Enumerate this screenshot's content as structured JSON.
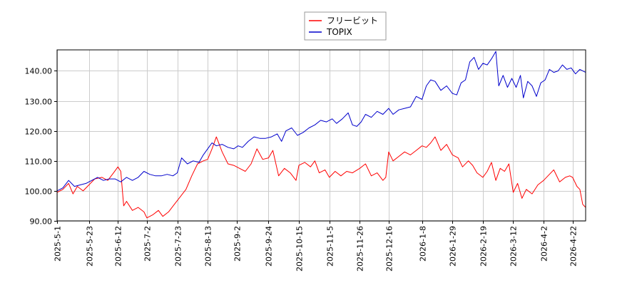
{
  "chart_data": {
    "type": "line",
    "title": "",
    "xlabel": "",
    "ylabel": "",
    "ylim": [
      90,
      147
    ],
    "yticks": [
      90,
      100,
      110,
      120,
      130,
      140
    ],
    "ytick_labels": [
      "90.00",
      "100.00",
      "110.00",
      "120.00",
      "130.00",
      "140.00"
    ],
    "xrange": [
      "2025-05-01",
      "2026-05-01"
    ],
    "xticks": [
      "2025-5-1",
      "2025-5-23",
      "2025-6-12",
      "2025-7-2",
      "2025-7-23",
      "2025-8-13",
      "2025-9-2",
      "2025-9-24",
      "2025-10-15",
      "2025-11-5",
      "2025-11-26",
      "2025-12-16",
      "2026-1-8",
      "2026-1-29",
      "2026-2-19",
      "2026-3-12",
      "2026-4-2",
      "2026-4-22"
    ],
    "grid": true,
    "legend_position": "top-center",
    "series": [
      {
        "name": "フリービット",
        "color": "#ff0000",
        "points": [
          [
            "2025-05-01",
            99.5
          ],
          [
            "2025-05-05",
            100.5
          ],
          [
            "2025-05-09",
            102.5
          ],
          [
            "2025-05-12",
            99.0
          ],
          [
            "2025-05-15",
            101.5
          ],
          [
            "2025-05-19",
            100.0
          ],
          [
            "2025-05-23",
            102.0
          ],
          [
            "2025-05-27",
            104.0
          ],
          [
            "2025-06-01",
            104.5
          ],
          [
            "2025-06-05",
            103.5
          ],
          [
            "2025-06-09",
            106.0
          ],
          [
            "2025-06-12",
            108.0
          ],
          [
            "2025-06-14",
            106.5
          ],
          [
            "2025-06-16",
            95.0
          ],
          [
            "2025-06-18",
            96.5
          ],
          [
            "2025-06-22",
            93.5
          ],
          [
            "2025-06-26",
            94.5
          ],
          [
            "2025-06-30",
            93.0
          ],
          [
            "2025-07-02",
            91.0
          ],
          [
            "2025-07-06",
            92.0
          ],
          [
            "2025-07-10",
            93.5
          ],
          [
            "2025-07-13",
            91.5
          ],
          [
            "2025-07-17",
            93.0
          ],
          [
            "2025-07-21",
            95.5
          ],
          [
            "2025-07-25",
            98.0
          ],
          [
            "2025-07-29",
            100.5
          ],
          [
            "2025-08-02",
            105.0
          ],
          [
            "2025-08-06",
            109.0
          ],
          [
            "2025-08-10",
            110.0
          ],
          [
            "2025-08-13",
            110.5
          ],
          [
            "2025-08-16",
            114.0
          ],
          [
            "2025-08-19",
            118.0
          ],
          [
            "2025-08-23",
            113.0
          ],
          [
            "2025-08-27",
            109.0
          ],
          [
            "2025-08-31",
            108.5
          ],
          [
            "2025-09-04",
            107.5
          ],
          [
            "2025-09-08",
            106.5
          ],
          [
            "2025-09-12",
            109.0
          ],
          [
            "2025-09-16",
            114.0
          ],
          [
            "2025-09-20",
            110.5
          ],
          [
            "2025-09-24",
            111.0
          ],
          [
            "2025-09-27",
            113.5
          ],
          [
            "2025-10-01",
            105.0
          ],
          [
            "2025-10-05",
            107.5
          ],
          [
            "2025-10-09",
            106.0
          ],
          [
            "2025-10-13",
            103.5
          ],
          [
            "2025-10-15",
            108.5
          ],
          [
            "2025-10-19",
            109.5
          ],
          [
            "2025-10-23",
            108.0
          ],
          [
            "2025-10-26",
            110.0
          ],
          [
            "2025-10-29",
            106.0
          ],
          [
            "2025-11-02",
            107.0
          ],
          [
            "2025-11-05",
            104.5
          ],
          [
            "2025-11-09",
            106.5
          ],
          [
            "2025-11-13",
            105.0
          ],
          [
            "2025-11-17",
            106.5
          ],
          [
            "2025-11-21",
            106.0
          ],
          [
            "2025-11-26",
            107.5
          ],
          [
            "2025-11-30",
            109.0
          ],
          [
            "2025-12-04",
            105.0
          ],
          [
            "2025-12-08",
            106.0
          ],
          [
            "2025-12-12",
            103.5
          ],
          [
            "2025-12-14",
            104.5
          ],
          [
            "2025-12-16",
            113.0
          ],
          [
            "2025-12-19",
            110.0
          ],
          [
            "2025-12-23",
            111.5
          ],
          [
            "2025-12-27",
            113.0
          ],
          [
            "2025-12-31",
            112.0
          ],
          [
            "2026-01-04",
            113.5
          ],
          [
            "2026-01-08",
            115.0
          ],
          [
            "2026-01-11",
            114.5
          ],
          [
            "2026-01-14",
            116.0
          ],
          [
            "2026-01-17",
            118.0
          ],
          [
            "2026-01-21",
            113.5
          ],
          [
            "2026-01-25",
            115.5
          ],
          [
            "2026-01-29",
            112.0
          ],
          [
            "2026-02-02",
            111.0
          ],
          [
            "2026-02-05",
            108.0
          ],
          [
            "2026-02-09",
            110.0
          ],
          [
            "2026-02-12",
            108.5
          ],
          [
            "2026-02-15",
            106.0
          ],
          [
            "2026-02-19",
            104.5
          ],
          [
            "2026-02-22",
            106.5
          ],
          [
            "2026-02-25",
            109.5
          ],
          [
            "2026-02-28",
            103.5
          ],
          [
            "2026-03-03",
            107.5
          ],
          [
            "2026-03-06",
            106.5
          ],
          [
            "2026-03-09",
            109.0
          ],
          [
            "2026-03-12",
            99.5
          ],
          [
            "2026-03-15",
            102.5
          ],
          [
            "2026-03-18",
            97.5
          ],
          [
            "2026-03-21",
            100.5
          ],
          [
            "2026-03-25",
            99.0
          ],
          [
            "2026-03-29",
            102.0
          ],
          [
            "2026-04-02",
            103.5
          ],
          [
            "2026-04-06",
            105.5
          ],
          [
            "2026-04-09",
            107.0
          ],
          [
            "2026-04-13",
            103.0
          ],
          [
            "2026-04-17",
            104.5
          ],
          [
            "2026-04-20",
            105.0
          ],
          [
            "2026-04-22",
            104.5
          ],
          [
            "2026-04-25",
            101.5
          ],
          [
            "2026-04-27",
            100.5
          ],
          [
            "2026-04-29",
            95.5
          ],
          [
            "2026-05-01",
            94.5
          ]
        ]
      },
      {
        "name": "TOPIX",
        "color": "#0000cc",
        "points": [
          [
            "2025-05-01",
            100.0
          ],
          [
            "2025-05-05",
            101.0
          ],
          [
            "2025-05-09",
            103.5
          ],
          [
            "2025-05-13",
            101.5
          ],
          [
            "2025-05-17",
            102.0
          ],
          [
            "2025-05-21",
            102.5
          ],
          [
            "2025-05-25",
            103.5
          ],
          [
            "2025-05-29",
            104.5
          ],
          [
            "2025-06-02",
            103.5
          ],
          [
            "2025-06-06",
            104.0
          ],
          [
            "2025-06-10",
            104.0
          ],
          [
            "2025-06-14",
            103.0
          ],
          [
            "2025-06-18",
            104.5
          ],
          [
            "2025-06-22",
            103.5
          ],
          [
            "2025-06-26",
            104.5
          ],
          [
            "2025-06-30",
            106.5
          ],
          [
            "2025-07-04",
            105.5
          ],
          [
            "2025-07-08",
            105.0
          ],
          [
            "2025-07-12",
            105.0
          ],
          [
            "2025-07-16",
            105.5
          ],
          [
            "2025-07-20",
            105.0
          ],
          [
            "2025-07-23",
            106.0
          ],
          [
            "2025-07-26",
            111.0
          ],
          [
            "2025-07-30",
            109.0
          ],
          [
            "2025-08-03",
            110.0
          ],
          [
            "2025-08-07",
            109.5
          ],
          [
            "2025-08-10",
            112.0
          ],
          [
            "2025-08-13",
            114.0
          ],
          [
            "2025-08-16",
            116.0
          ],
          [
            "2025-08-19",
            115.0
          ],
          [
            "2025-08-23",
            115.5
          ],
          [
            "2025-08-27",
            114.5
          ],
          [
            "2025-08-31",
            114.0
          ],
          [
            "2025-09-03",
            115.0
          ],
          [
            "2025-09-06",
            114.5
          ],
          [
            "2025-09-10",
            116.5
          ],
          [
            "2025-09-14",
            118.0
          ],
          [
            "2025-09-18",
            117.5
          ],
          [
            "2025-09-22",
            117.5
          ],
          [
            "2025-09-26",
            118.0
          ],
          [
            "2025-09-30",
            119.0
          ],
          [
            "2025-10-03",
            116.5
          ],
          [
            "2025-10-06",
            120.0
          ],
          [
            "2025-10-10",
            121.0
          ],
          [
            "2025-10-14",
            118.5
          ],
          [
            "2025-10-18",
            119.5
          ],
          [
            "2025-10-22",
            121.0
          ],
          [
            "2025-10-26",
            122.0
          ],
          [
            "2025-10-30",
            123.5
          ],
          [
            "2025-11-03",
            123.0
          ],
          [
            "2025-11-07",
            124.0
          ],
          [
            "2025-11-10",
            122.5
          ],
          [
            "2025-11-14",
            124.0
          ],
          [
            "2025-11-18",
            126.0
          ],
          [
            "2025-11-21",
            122.0
          ],
          [
            "2025-11-24",
            121.5
          ],
          [
            "2025-11-27",
            123.0
          ],
          [
            "2025-11-30",
            125.5
          ],
          [
            "2025-12-04",
            124.5
          ],
          [
            "2025-12-08",
            126.5
          ],
          [
            "2025-12-12",
            125.5
          ],
          [
            "2025-12-16",
            127.5
          ],
          [
            "2025-12-19",
            125.5
          ],
          [
            "2025-12-23",
            127.0
          ],
          [
            "2025-12-27",
            127.5
          ],
          [
            "2025-12-31",
            128.0
          ],
          [
            "2026-01-04",
            131.5
          ],
          [
            "2026-01-08",
            130.5
          ],
          [
            "2026-01-11",
            135.0
          ],
          [
            "2026-01-14",
            137.0
          ],
          [
            "2026-01-17",
            136.5
          ],
          [
            "2026-01-21",
            133.5
          ],
          [
            "2026-01-25",
            135.0
          ],
          [
            "2026-01-29",
            132.5
          ],
          [
            "2026-02-01",
            132.0
          ],
          [
            "2026-02-04",
            136.0
          ],
          [
            "2026-02-07",
            137.0
          ],
          [
            "2026-02-10",
            143.0
          ],
          [
            "2026-02-13",
            144.5
          ],
          [
            "2026-02-16",
            140.5
          ],
          [
            "2026-02-19",
            142.5
          ],
          [
            "2026-02-22",
            142.0
          ],
          [
            "2026-02-25",
            144.0
          ],
          [
            "2026-02-28",
            146.5
          ],
          [
            "2026-03-02",
            135.0
          ],
          [
            "2026-03-05",
            138.5
          ],
          [
            "2026-03-08",
            134.5
          ],
          [
            "2026-03-11",
            137.5
          ],
          [
            "2026-03-14",
            134.5
          ],
          [
            "2026-03-17",
            138.5
          ],
          [
            "2026-03-19",
            131.0
          ],
          [
            "2026-03-22",
            136.5
          ],
          [
            "2026-03-25",
            135.0
          ],
          [
            "2026-03-28",
            131.5
          ],
          [
            "2026-03-31",
            136.0
          ],
          [
            "2026-04-03",
            137.0
          ],
          [
            "2026-04-06",
            140.5
          ],
          [
            "2026-04-09",
            139.5
          ],
          [
            "2026-04-12",
            140.0
          ],
          [
            "2026-04-15",
            142.0
          ],
          [
            "2026-04-18",
            140.5
          ],
          [
            "2026-04-21",
            141.0
          ],
          [
            "2026-04-24",
            139.0
          ],
          [
            "2026-04-27",
            140.5
          ],
          [
            "2026-05-01",
            139.5
          ]
        ]
      }
    ]
  }
}
